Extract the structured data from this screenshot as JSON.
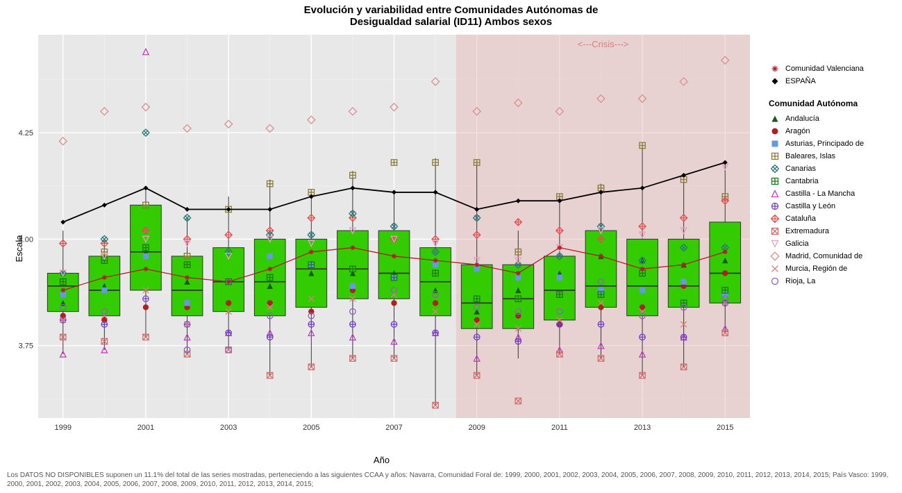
{
  "title_line1": "Evolución y variabilidad entre Comunidades Autónomas de",
  "title_line2": "Desigualdad salarial (ID11) Ambos sexos",
  "y_label": "Escala",
  "x_label": "Año",
  "footer": "Los DATOS NO DISPONIBLES suponen un 11.1% del total de las series mostradas, perteneciendo a las siguientes CCAA y años: Navarra, Comunidad Foral de: 1999, 2000, 2001, 2002, 2003, 2004, 2005, 2006, 2007, 2008, 2009, 2010, 2011, 2012, 2013, 2014, 2015; País Vasco: 1999, 2000, 2001, 2002, 2003, 2004, 2005, 2006, 2007, 2008, 2009, 2010, 2011, 2012, 2013, 2014, 2015;",
  "crisis_label": "<---Crisis--->",
  "crisis_color": "#e8b5b5",
  "crisis_text_color": "#d98080",
  "plot": {
    "bg": "#e8e8e8",
    "grid_major": "#ffffff",
    "grid_minor": "#f2f2f2",
    "box_fill": "#33cc00",
    "box_stroke": "#333333",
    "whisker_stroke": "#333333",
    "espana_line": "#000000",
    "valencia_line": "#b02020",
    "xlim": [
      1998.4,
      2015.6
    ],
    "ylim": [
      3.58,
      4.48
    ],
    "yticks": [
      3.75,
      4.0,
      4.25
    ],
    "xticks": [
      1999,
      2001,
      2003,
      2005,
      2007,
      2009,
      2011,
      2013,
      2015
    ],
    "crisis_range": [
      2008.5,
      2015.6
    ],
    "box_width": 0.75
  },
  "years": [
    1999,
    2000,
    2001,
    2002,
    2003,
    2004,
    2005,
    2006,
    2007,
    2008,
    2009,
    2010,
    2011,
    2012,
    2013,
    2014,
    2015
  ],
  "boxes": [
    {
      "y": 1999,
      "q1": 3.83,
      "med": 3.89,
      "q3": 3.92,
      "lo": 3.73,
      "hi": 4.02
    },
    {
      "y": 2000,
      "q1": 3.82,
      "med": 3.88,
      "q3": 3.96,
      "lo": 3.74,
      "hi": 4.0
    },
    {
      "y": 2001,
      "q1": 3.88,
      "med": 3.97,
      "q3": 4.08,
      "lo": 3.77,
      "hi": 4.12
    },
    {
      "y": 2002,
      "q1": 3.82,
      "med": 3.88,
      "q3": 3.96,
      "lo": 3.73,
      "hi": 4.05
    },
    {
      "y": 2003,
      "q1": 3.83,
      "med": 3.9,
      "q3": 3.98,
      "lo": 3.74,
      "hi": 4.1
    },
    {
      "y": 2004,
      "q1": 3.82,
      "med": 3.9,
      "q3": 4.0,
      "lo": 3.68,
      "hi": 4.14
    },
    {
      "y": 2005,
      "q1": 3.84,
      "med": 3.93,
      "q3": 4.0,
      "lo": 3.7,
      "hi": 4.11
    },
    {
      "y": 2006,
      "q1": 3.86,
      "med": 3.93,
      "q3": 4.02,
      "lo": 3.72,
      "hi": 4.16
    },
    {
      "y": 2007,
      "q1": 3.86,
      "med": 3.92,
      "q3": 4.02,
      "lo": 3.72,
      "hi": 4.11
    },
    {
      "y": 2008,
      "q1": 3.82,
      "med": 3.9,
      "q3": 3.98,
      "lo": 3.61,
      "hi": 4.19
    },
    {
      "y": 2009,
      "q1": 3.79,
      "med": 3.85,
      "q3": 3.94,
      "lo": 3.68,
      "hi": 4.18
    },
    {
      "y": 2010,
      "q1": 3.79,
      "med": 3.86,
      "q3": 3.94,
      "lo": 3.72,
      "hi": 4.02
    },
    {
      "y": 2011,
      "q1": 3.81,
      "med": 3.88,
      "q3": 3.96,
      "lo": 3.73,
      "hi": 4.1
    },
    {
      "y": 2012,
      "q1": 3.84,
      "med": 3.89,
      "q3": 4.02,
      "lo": 3.72,
      "hi": 4.13
    },
    {
      "y": 2013,
      "q1": 3.82,
      "med": 3.89,
      "q3": 4.0,
      "lo": 3.68,
      "hi": 4.22
    },
    {
      "y": 2014,
      "q1": 3.84,
      "med": 3.89,
      "q3": 4.0,
      "lo": 3.7,
      "hi": 4.15
    },
    {
      "y": 2015,
      "q1": 3.85,
      "med": 3.92,
      "q3": 4.04,
      "lo": 3.78,
      "hi": 4.18
    }
  ],
  "espana": [
    4.04,
    4.08,
    4.12,
    4.07,
    4.07,
    4.07,
    4.1,
    4.12,
    4.11,
    4.11,
    4.07,
    4.09,
    4.09,
    4.11,
    4.12,
    4.15,
    4.18
  ],
  "valencia": [
    3.88,
    3.91,
    3.93,
    3.91,
    3.9,
    3.93,
    3.97,
    3.98,
    3.96,
    3.95,
    3.94,
    3.92,
    3.98,
    3.96,
    3.93,
    3.94,
    3.97
  ],
  "legend_top": [
    {
      "label": "Comunidad Valenciana",
      "shape": "asterisk",
      "color": "#b02020"
    },
    {
      "label": "ESPAÑA",
      "shape": "diamond-filled",
      "color": "#000000"
    }
  ],
  "legend_title": "Comunidad Autónoma",
  "legend_ca": [
    {
      "label": "Andalucía",
      "shape": "triangle-filled",
      "color": "#155b0f"
    },
    {
      "label": "Aragón",
      "shape": "circle-filled",
      "color": "#b02020"
    },
    {
      "label": "Asturias, Principado de",
      "shape": "square-filled",
      "color": "#6699e0"
    },
    {
      "label": "Baleares, Islas",
      "shape": "square-plus",
      "color": "#8a7a3a"
    },
    {
      "label": "Canarias",
      "shape": "diamond-x",
      "color": "#2a7a7a"
    },
    {
      "label": "Cantabria",
      "shape": "square-grid",
      "color": "#1a7a1a"
    },
    {
      "label": "Castilla - La Mancha",
      "shape": "triangle-open",
      "color": "#c040c0"
    },
    {
      "label": "Castilla y León",
      "shape": "circle-plus",
      "color": "#7040c0"
    },
    {
      "label": "Cataluña",
      "shape": "diamond-plus",
      "color": "#e05050"
    },
    {
      "label": "Extremadura",
      "shape": "square-x",
      "color": "#d07070"
    },
    {
      "label": "Galicia",
      "shape": "triangle-down",
      "color": "#e8a0c0"
    },
    {
      "label": "Madrid, Comunidad de",
      "shape": "diamond-open",
      "color": "#d89090"
    },
    {
      "label": "Murcia, Región de",
      "shape": "x",
      "color": "#e08080"
    },
    {
      "label": "Rioja, La",
      "shape": "circle-open",
      "color": "#9060c0"
    }
  ],
  "scatter": [
    {
      "s": "diamond-open",
      "c": "#d89090",
      "pts": [
        [
          1999,
          4.23
        ],
        [
          2000,
          4.3
        ],
        [
          2001,
          4.31
        ],
        [
          2002,
          4.26
        ],
        [
          2003,
          4.27
        ],
        [
          2004,
          4.26
        ],
        [
          2005,
          4.28
        ],
        [
          2006,
          4.3
        ],
        [
          2007,
          4.31
        ],
        [
          2008,
          4.37
        ],
        [
          2009,
          4.3
        ],
        [
          2010,
          4.32
        ],
        [
          2011,
          4.3
        ],
        [
          2012,
          4.33
        ],
        [
          2013,
          4.33
        ],
        [
          2014,
          4.37
        ],
        [
          2015,
          4.42
        ]
      ]
    },
    {
      "s": "square-plus",
      "c": "#8a7a3a",
      "pts": [
        [
          1999,
          3.9
        ],
        [
          2000,
          3.97
        ],
        [
          2001,
          4.08
        ],
        [
          2002,
          3.96
        ],
        [
          2003,
          4.07
        ],
        [
          2004,
          4.13
        ],
        [
          2005,
          4.11
        ],
        [
          2006,
          4.15
        ],
        [
          2007,
          4.18
        ],
        [
          2008,
          4.18
        ],
        [
          2009,
          4.18
        ],
        [
          2010,
          3.97
        ],
        [
          2011,
          4.1
        ],
        [
          2012,
          4.12
        ],
        [
          2013,
          4.22
        ],
        [
          2014,
          4.14
        ],
        [
          2015,
          4.1
        ]
      ]
    },
    {
      "s": "diamond-plus",
      "c": "#e05050",
      "pts": [
        [
          1999,
          3.99
        ],
        [
          2000,
          3.99
        ],
        [
          2001,
          4.02
        ],
        [
          2002,
          4.0
        ],
        [
          2003,
          4.01
        ],
        [
          2004,
          4.02
        ],
        [
          2005,
          4.05
        ],
        [
          2006,
          4.05
        ],
        [
          2007,
          4.0
        ],
        [
          2008,
          4.0
        ],
        [
          2009,
          4.01
        ],
        [
          2010,
          4.04
        ],
        [
          2011,
          4.02
        ],
        [
          2012,
          4.0
        ],
        [
          2013,
          4.03
        ],
        [
          2014,
          4.05
        ],
        [
          2015,
          4.09
        ]
      ]
    },
    {
      "s": "circle-filled",
      "c": "#b02020",
      "pts": [
        [
          1999,
          3.82
        ],
        [
          2000,
          3.81
        ],
        [
          2001,
          3.84
        ],
        [
          2002,
          3.84
        ],
        [
          2003,
          3.85
        ],
        [
          2004,
          3.85
        ],
        [
          2005,
          3.83
        ],
        [
          2006,
          3.88
        ],
        [
          2007,
          3.85
        ],
        [
          2008,
          3.85
        ],
        [
          2009,
          3.81
        ],
        [
          2010,
          3.82
        ],
        [
          2011,
          3.8
        ],
        [
          2012,
          3.84
        ],
        [
          2013,
          3.84
        ],
        [
          2014,
          3.89
        ],
        [
          2015,
          3.92
        ]
      ]
    },
    {
      "s": "triangle-filled",
      "c": "#155b0f",
      "pts": [
        [
          1999,
          3.85
        ],
        [
          2000,
          3.89
        ],
        [
          2001,
          3.97
        ],
        [
          2002,
          3.9
        ],
        [
          2003,
          3.9
        ],
        [
          2004,
          3.89
        ],
        [
          2005,
          3.92
        ],
        [
          2006,
          3.92
        ],
        [
          2007,
          3.92
        ],
        [
          2008,
          3.88
        ],
        [
          2009,
          3.83
        ],
        [
          2010,
          3.88
        ],
        [
          2011,
          3.92
        ],
        [
          2012,
          3.96
        ],
        [
          2013,
          3.95
        ],
        [
          2014,
          3.94
        ],
        [
          2015,
          3.95
        ]
      ]
    },
    {
      "s": "square-filled",
      "c": "#6699e0",
      "pts": [
        [
          1999,
          3.87
        ],
        [
          2000,
          3.88
        ],
        [
          2001,
          3.96
        ],
        [
          2002,
          3.85
        ],
        [
          2003,
          3.9
        ],
        [
          2004,
          3.96
        ],
        [
          2005,
          3.94
        ],
        [
          2006,
          3.89
        ],
        [
          2007,
          3.91
        ],
        [
          2008,
          3.94
        ],
        [
          2009,
          3.93
        ],
        [
          2010,
          3.91
        ],
        [
          2011,
          3.91
        ],
        [
          2012,
          3.88
        ],
        [
          2013,
          3.88
        ],
        [
          2014,
          3.9
        ],
        [
          2015,
          3.87
        ]
      ]
    },
    {
      "s": "diamond-x",
      "c": "#2a7a7a",
      "pts": [
        [
          1999,
          3.92
        ],
        [
          2000,
          4.0
        ],
        [
          2001,
          4.25
        ],
        [
          2002,
          4.05
        ],
        [
          2003,
          3.97
        ],
        [
          2004,
          4.01
        ],
        [
          2005,
          4.01
        ],
        [
          2006,
          4.06
        ],
        [
          2007,
          4.03
        ],
        [
          2008,
          3.97
        ],
        [
          2009,
          4.05
        ],
        [
          2010,
          3.94
        ],
        [
          2011,
          3.96
        ],
        [
          2012,
          4.03
        ],
        [
          2013,
          3.95
        ],
        [
          2014,
          3.98
        ],
        [
          2015,
          3.98
        ]
      ]
    },
    {
      "s": "square-grid",
      "c": "#1a7a1a",
      "pts": [
        [
          1999,
          3.9
        ],
        [
          2000,
          3.95
        ],
        [
          2001,
          3.98
        ],
        [
          2002,
          3.94
        ],
        [
          2003,
          3.9
        ],
        [
          2004,
          3.91
        ],
        [
          2005,
          3.94
        ],
        [
          2006,
          3.93
        ],
        [
          2007,
          3.91
        ],
        [
          2008,
          3.92
        ],
        [
          2009,
          3.86
        ],
        [
          2010,
          3.86
        ],
        [
          2011,
          3.87
        ],
        [
          2012,
          3.87
        ],
        [
          2013,
          3.92
        ],
        [
          2014,
          3.85
        ],
        [
          2015,
          3.88
        ]
      ]
    },
    {
      "s": "triangle-open",
      "c": "#c040c0",
      "pts": [
        [
          1999,
          3.73
        ],
        [
          2000,
          3.74
        ],
        [
          2001,
          4.44
        ],
        [
          2002,
          3.77
        ],
        [
          2003,
          3.78
        ],
        [
          2004,
          3.78
        ],
        [
          2005,
          3.78
        ],
        [
          2006,
          3.77
        ],
        [
          2007,
          3.76
        ],
        [
          2008,
          3.78
        ],
        [
          2009,
          3.72
        ],
        [
          2010,
          3.77
        ],
        [
          2011,
          3.74
        ],
        [
          2012,
          3.75
        ],
        [
          2013,
          3.73
        ],
        [
          2014,
          3.77
        ],
        [
          2015,
          3.79
        ]
      ]
    },
    {
      "s": "circle-plus",
      "c": "#7040c0",
      "pts": [
        [
          1999,
          3.81
        ],
        [
          2000,
          3.8
        ],
        [
          2001,
          3.86
        ],
        [
          2002,
          3.8
        ],
        [
          2003,
          3.78
        ],
        [
          2004,
          3.77
        ],
        [
          2005,
          3.8
        ],
        [
          2006,
          3.8
        ],
        [
          2007,
          3.8
        ],
        [
          2008,
          3.78
        ],
        [
          2009,
          3.77
        ],
        [
          2010,
          3.76
        ],
        [
          2011,
          3.8
        ],
        [
          2012,
          3.8
        ],
        [
          2013,
          3.77
        ],
        [
          2014,
          3.77
        ],
        [
          2015,
          3.85
        ]
      ]
    },
    {
      "s": "square-x",
      "c": "#d07070",
      "pts": [
        [
          1999,
          3.77
        ],
        [
          2000,
          3.76
        ],
        [
          2001,
          3.77
        ],
        [
          2002,
          3.73
        ],
        [
          2003,
          3.74
        ],
        [
          2004,
          3.68
        ],
        [
          2005,
          3.7
        ],
        [
          2006,
          3.72
        ],
        [
          2007,
          3.72
        ],
        [
          2008,
          3.61
        ],
        [
          2009,
          3.68
        ],
        [
          2010,
          3.62
        ],
        [
          2011,
          3.73
        ],
        [
          2012,
          3.72
        ],
        [
          2013,
          3.68
        ],
        [
          2014,
          3.7
        ],
        [
          2015,
          3.78
        ]
      ]
    },
    {
      "s": "triangle-down",
      "c": "#e8a0c0",
      "pts": [
        [
          1999,
          3.92
        ],
        [
          2000,
          3.96
        ],
        [
          2001,
          4.0
        ],
        [
          2002,
          3.99
        ],
        [
          2003,
          3.96
        ],
        [
          2004,
          4.0
        ],
        [
          2005,
          3.99
        ],
        [
          2006,
          4.02
        ],
        [
          2007,
          4.0
        ],
        [
          2008,
          3.99
        ],
        [
          2009,
          3.95
        ],
        [
          2010,
          3.95
        ],
        [
          2011,
          3.98
        ],
        [
          2012,
          4.02
        ],
        [
          2013,
          4.01
        ],
        [
          2014,
          4.02
        ],
        [
          2015,
          4.17
        ]
      ]
    },
    {
      "s": "x",
      "c": "#e08080",
      "pts": [
        [
          1999,
          3.81
        ],
        [
          2000,
          3.82
        ],
        [
          2001,
          3.88
        ],
        [
          2002,
          3.8
        ],
        [
          2003,
          3.83
        ],
        [
          2004,
          3.84
        ],
        [
          2005,
          3.86
        ],
        [
          2006,
          3.86
        ],
        [
          2007,
          3.87
        ],
        [
          2008,
          3.83
        ],
        [
          2009,
          3.8
        ],
        [
          2010,
          3.79
        ],
        [
          2011,
          3.81
        ],
        [
          2012,
          3.85
        ],
        [
          2013,
          3.83
        ],
        [
          2014,
          3.8
        ],
        [
          2015,
          3.85
        ]
      ]
    },
    {
      "s": "circle-open",
      "c": "#9060c0",
      "pts": [
        [
          1999,
          3.84
        ],
        [
          2000,
          3.83
        ],
        [
          2001,
          3.86
        ],
        [
          2002,
          3.74
        ],
        [
          2003,
          3.74
        ],
        [
          2004,
          3.82
        ],
        [
          2005,
          3.82
        ],
        [
          2006,
          3.83
        ],
        [
          2007,
          3.88
        ],
        [
          2008,
          3.87
        ],
        [
          2009,
          3.84
        ],
        [
          2010,
          3.83
        ],
        [
          2011,
          3.83
        ],
        [
          2012,
          3.9
        ],
        [
          2013,
          3.82
        ],
        [
          2014,
          3.84
        ],
        [
          2015,
          3.86
        ]
      ]
    }
  ]
}
